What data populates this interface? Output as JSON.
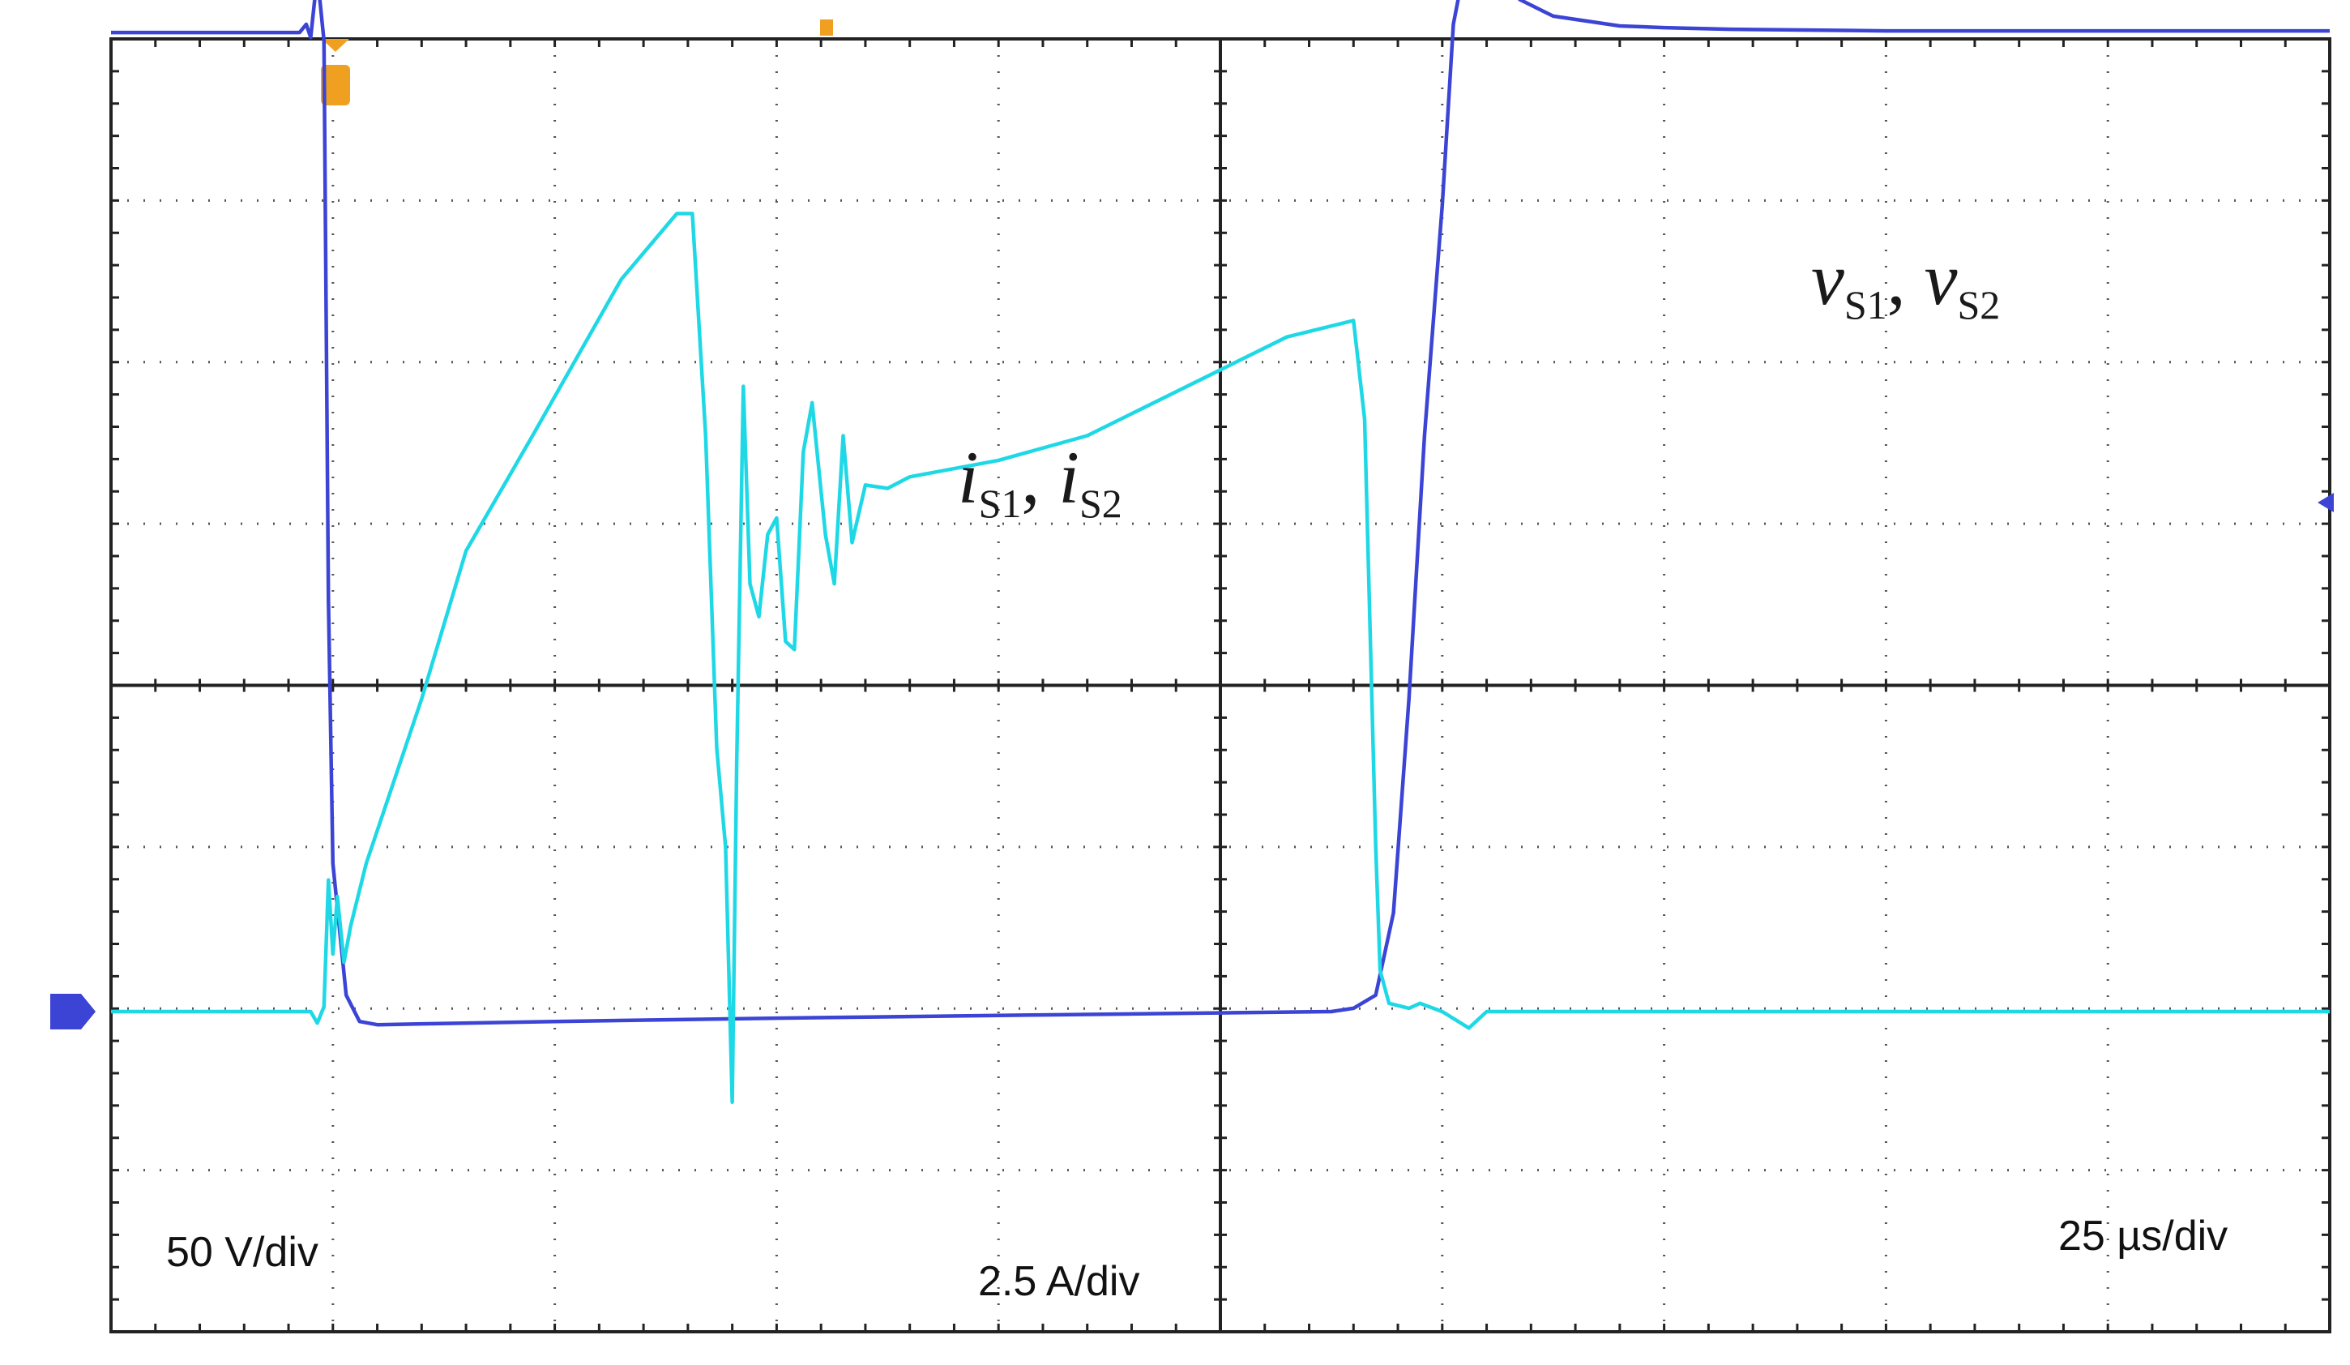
{
  "chart_data": {
    "type": "line",
    "title": "",
    "grid": true,
    "divisions": {
      "x": 10,
      "y": 8
    },
    "x_scale": "25 µs/div",
    "x_range_div": [
      0,
      10
    ],
    "y_range_div": [
      0,
      8
    ],
    "colors": {
      "voltage": "#3b44d4",
      "current": "#1fd8e6",
      "marker_orange": "#f0a020",
      "marker_blue": "#3b44d4",
      "grid": "#555555",
      "frame": "#222222"
    },
    "series": [
      {
        "name": "v_S1, v_S2",
        "unit_scale": "50 V/div",
        "color": "#3b44d4",
        "points": [
          [
            0.0,
            5.95
          ],
          [
            0.85,
            5.95
          ],
          [
            0.88,
            6.0
          ],
          [
            0.9,
            5.92
          ],
          [
            0.93,
            6.3
          ],
          [
            0.96,
            5.9
          ],
          [
            0.98,
            2.5
          ],
          [
            1.0,
            0.9
          ],
          [
            1.03,
            0.5
          ],
          [
            1.06,
            0.1
          ],
          [
            1.12,
            -0.06
          ],
          [
            1.2,
            -0.08
          ],
          [
            2.0,
            -0.06
          ],
          [
            3.0,
            -0.04
          ],
          [
            4.2,
            -0.02
          ],
          [
            5.5,
            0.0
          ],
          [
            5.6,
            0.02
          ],
          [
            5.7,
            0.1
          ],
          [
            5.78,
            0.6
          ],
          [
            5.85,
            1.9
          ],
          [
            5.92,
            3.5
          ],
          [
            6.0,
            4.9
          ],
          [
            6.05,
            6.0
          ],
          [
            6.1,
            6.35
          ],
          [
            6.15,
            6.45
          ],
          [
            6.2,
            6.35
          ],
          [
            6.35,
            6.15
          ],
          [
            6.5,
            6.05
          ],
          [
            6.8,
            5.99
          ],
          [
            7.0,
            5.98
          ],
          [
            7.3,
            5.97
          ],
          [
            8.0,
            5.96
          ],
          [
            10.0,
            5.96
          ]
        ]
      },
      {
        "name": "i_S1, i_S2",
        "unit_scale": "2.5 A/div",
        "color": "#1fd8e6",
        "points": [
          [
            0.0,
            0.0
          ],
          [
            0.9,
            0.0
          ],
          [
            0.93,
            -0.07
          ],
          [
            0.96,
            0.03
          ],
          [
            0.98,
            0.8
          ],
          [
            1.0,
            0.35
          ],
          [
            1.02,
            0.7
          ],
          [
            1.05,
            0.3
          ],
          [
            1.08,
            0.52
          ],
          [
            1.15,
            0.9
          ],
          [
            1.4,
            1.9
          ],
          [
            1.6,
            2.8
          ],
          [
            1.9,
            3.5
          ],
          [
            2.3,
            4.45
          ],
          [
            2.55,
            4.85
          ],
          [
            2.62,
            4.85
          ],
          [
            2.68,
            3.5
          ],
          [
            2.73,
            1.6
          ],
          [
            2.77,
            1.0
          ],
          [
            2.8,
            -0.55
          ],
          [
            2.82,
            1.5
          ],
          [
            2.85,
            3.8
          ],
          [
            2.88,
            2.6
          ],
          [
            2.92,
            2.4
          ],
          [
            2.96,
            2.9
          ],
          [
            3.0,
            3.0
          ],
          [
            3.04,
            2.25
          ],
          [
            3.08,
            2.2
          ],
          [
            3.12,
            3.4
          ],
          [
            3.16,
            3.7
          ],
          [
            3.22,
            2.9
          ],
          [
            3.26,
            2.6
          ],
          [
            3.3,
            3.5
          ],
          [
            3.34,
            2.85
          ],
          [
            3.4,
            3.2
          ],
          [
            3.5,
            3.18
          ],
          [
            3.6,
            3.25
          ],
          [
            4.0,
            3.35
          ],
          [
            4.4,
            3.5
          ],
          [
            5.0,
            3.9
          ],
          [
            5.3,
            4.1
          ],
          [
            5.6,
            4.2
          ],
          [
            5.65,
            3.6
          ],
          [
            5.7,
            1.0
          ],
          [
            5.72,
            0.25
          ],
          [
            5.76,
            0.05
          ],
          [
            5.85,
            0.02
          ],
          [
            5.9,
            0.05
          ],
          [
            6.0,
            0.0
          ],
          [
            6.12,
            -0.1
          ],
          [
            6.2,
            0.0
          ],
          [
            6.4,
            0.0
          ],
          [
            7.0,
            0.0
          ],
          [
            8.0,
            0.0
          ],
          [
            10.0,
            0.0
          ]
        ]
      }
    ],
    "annotations": {
      "voltage_label": {
        "main": "v",
        "sub1": "S1",
        "sep": ", ",
        "main2": "v",
        "sub2": "S2"
      },
      "current_label": {
        "main": "i",
        "sub1": "S1",
        "sep": ", ",
        "main2": "i",
        "sub2": "S2"
      },
      "volt_scale": "50 V/div",
      "amp_scale": "2.5 A/div",
      "time_scale": "25 µs/div"
    }
  }
}
